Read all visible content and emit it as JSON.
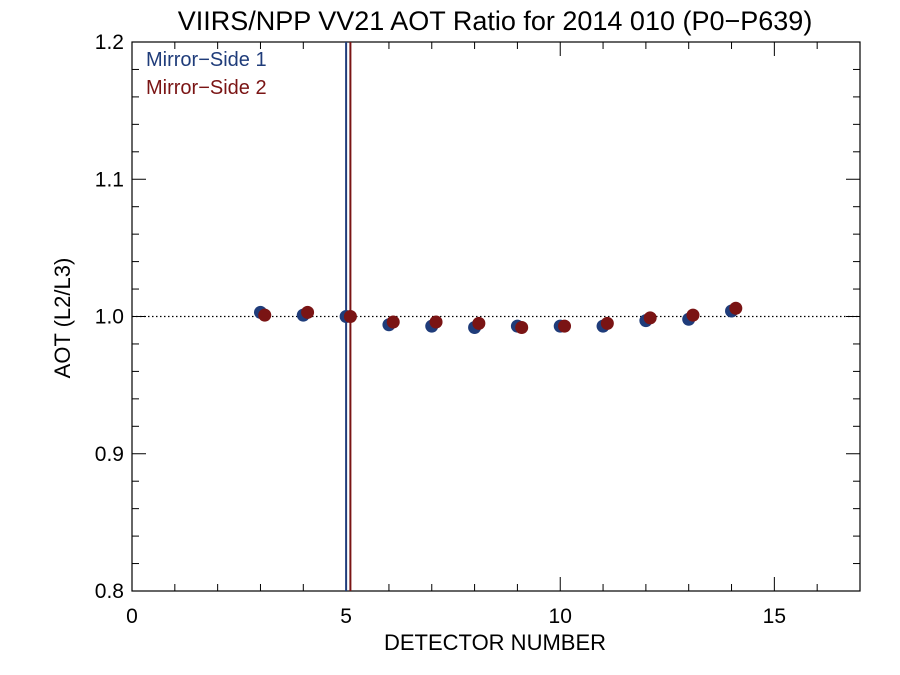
{
  "chart_data": {
    "type": "scatter",
    "title": "VIIRS/NPP VV21 AOT Ratio for 2014 010 (P0−P639)",
    "xlabel": "DETECTOR NUMBER",
    "ylabel": "AOT (L2/L3)",
    "xlim": [
      0,
      17
    ],
    "ylim": [
      0.8,
      1.2
    ],
    "x_ticks": [
      0,
      5,
      10,
      15
    ],
    "x_tick_labels": [
      "0",
      "5",
      "10",
      "15"
    ],
    "y_ticks": [
      0.8,
      0.9,
      1.0,
      1.1,
      1.2
    ],
    "y_tick_labels": [
      "0.8",
      "0.9",
      "1.0",
      "1.1",
      "1.2"
    ],
    "reference_line": {
      "y": 1.0,
      "style": "dotted"
    },
    "vertical_lines": [
      {
        "series": "Mirror−Side 1",
        "x": 5.0
      },
      {
        "series": "Mirror−Side 2",
        "x": 5.1
      }
    ],
    "legend_position": "top-left",
    "grid": false,
    "colors": {
      "Mirror−Side 1": "#1f3c7a",
      "Mirror−Side 2": "#7a1414"
    },
    "series": [
      {
        "name": "Mirror−Side 1",
        "x": [
          3,
          4,
          5,
          6,
          7,
          8,
          9,
          10,
          11,
          12,
          13,
          14
        ],
        "y": [
          1.003,
          1.001,
          1.0,
          0.994,
          0.993,
          0.992,
          0.993,
          0.993,
          0.993,
          0.997,
          0.998,
          1.004
        ]
      },
      {
        "name": "Mirror−Side 2",
        "x": [
          3.1,
          4.1,
          5.1,
          6.1,
          7.1,
          8.1,
          9.1,
          10.1,
          11.1,
          12.1,
          13.1,
          14.1
        ],
        "y": [
          1.001,
          1.003,
          1.0,
          0.996,
          0.996,
          0.995,
          0.992,
          0.993,
          0.995,
          0.999,
          1.001,
          1.006
        ]
      }
    ]
  }
}
